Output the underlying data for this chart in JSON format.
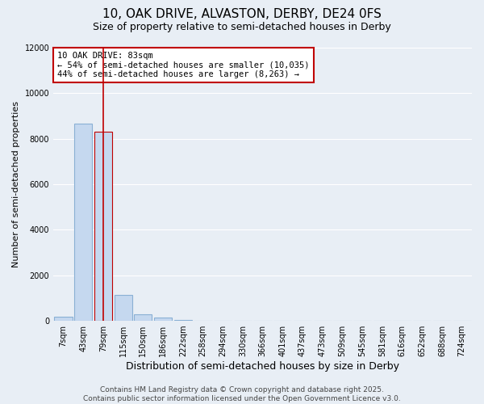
{
  "title_line1": "10, OAK DRIVE, ALVASTON, DERBY, DE24 0FS",
  "title_line2": "Size of property relative to semi-detached houses in Derby",
  "xlabel": "Distribution of semi-detached houses by size in Derby",
  "ylabel": "Number of semi-detached properties",
  "categories": [
    "7sqm",
    "43sqm",
    "79sqm",
    "115sqm",
    "150sqm",
    "186sqm",
    "222sqm",
    "258sqm",
    "294sqm",
    "330sqm",
    "366sqm",
    "401sqm",
    "437sqm",
    "473sqm",
    "509sqm",
    "545sqm",
    "581sqm",
    "616sqm",
    "652sqm",
    "688sqm",
    "724sqm"
  ],
  "values": [
    170,
    8650,
    8300,
    1150,
    300,
    130,
    50,
    0,
    0,
    0,
    0,
    0,
    0,
    0,
    0,
    0,
    0,
    0,
    0,
    0,
    0
  ],
  "bar_color": "#c5d8ef",
  "bar_edge_color": "#8ab0d4",
  "highlight_bar_index": 2,
  "highlight_edge_color": "#c00000",
  "vline_x": 2,
  "vline_color": "#c00000",
  "annotation_text": "10 OAK DRIVE: 83sqm\n← 54% of semi-detached houses are smaller (10,035)\n44% of semi-detached houses are larger (8,263) →",
  "ylim": [
    0,
    12000
  ],
  "yticks": [
    0,
    2000,
    4000,
    6000,
    8000,
    10000,
    12000
  ],
  "bg_color": "#e8eef5",
  "plot_bg_color": "#e8eef5",
  "footer_line1": "Contains HM Land Registry data © Crown copyright and database right 2025.",
  "footer_line2": "Contains public sector information licensed under the Open Government Licence v3.0.",
  "title_fontsize": 11,
  "subtitle_fontsize": 9,
  "tick_fontsize": 7,
  "ylabel_fontsize": 8,
  "xlabel_fontsize": 9,
  "annotation_fontsize": 7.5,
  "footer_fontsize": 6.5
}
